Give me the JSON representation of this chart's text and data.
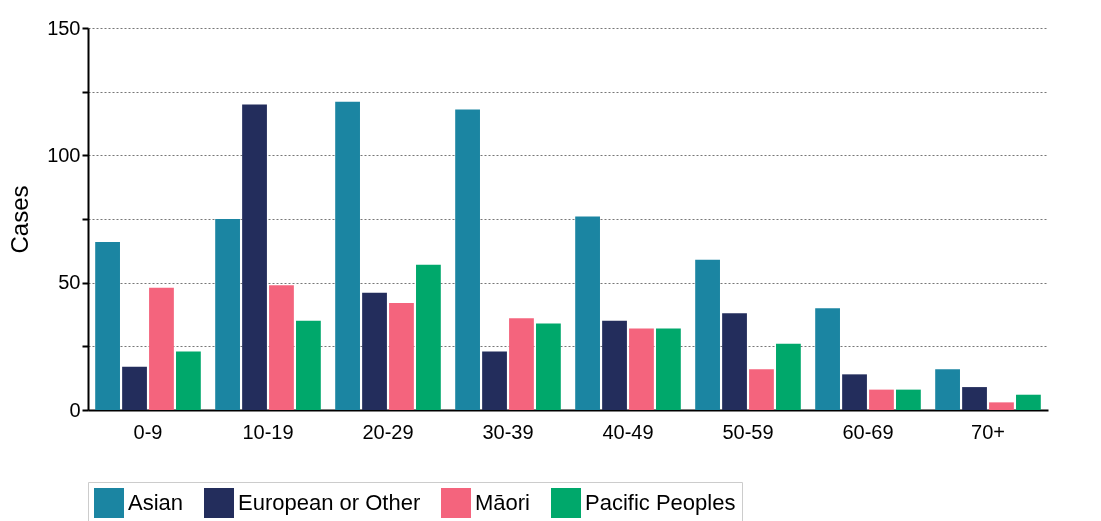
{
  "chart_data": {
    "type": "bar",
    "ylabel": "Cases",
    "categories": [
      "0-9",
      "10-19",
      "20-29",
      "30-39",
      "40-49",
      "50-59",
      "60-69",
      "70+"
    ],
    "series": [
      {
        "name": "Asian",
        "color": "#1b85a2",
        "values": [
          66,
          75,
          121,
          118,
          76,
          59,
          40,
          16
        ]
      },
      {
        "name": "European or Other",
        "color": "#232d5c",
        "values": [
          17,
          120,
          46,
          23,
          35,
          38,
          14,
          9
        ]
      },
      {
        "name": "Māori",
        "color": "#f4647d",
        "values": [
          48,
          49,
          42,
          36,
          32,
          16,
          8,
          3
        ]
      },
      {
        "name": "Pacific Peoples",
        "color": "#00a86b",
        "values": [
          23,
          35,
          57,
          34,
          32,
          26,
          8,
          6
        ]
      }
    ],
    "ylim": [
      0,
      150
    ],
    "yticks": [
      0,
      {
        "value": 25,
        "label": null
      },
      50,
      {
        "value": 75,
        "label": null
      },
      100,
      {
        "value": 125,
        "label": null
      },
      150
    ],
    "grid": "y",
    "legend": "bottom"
  }
}
